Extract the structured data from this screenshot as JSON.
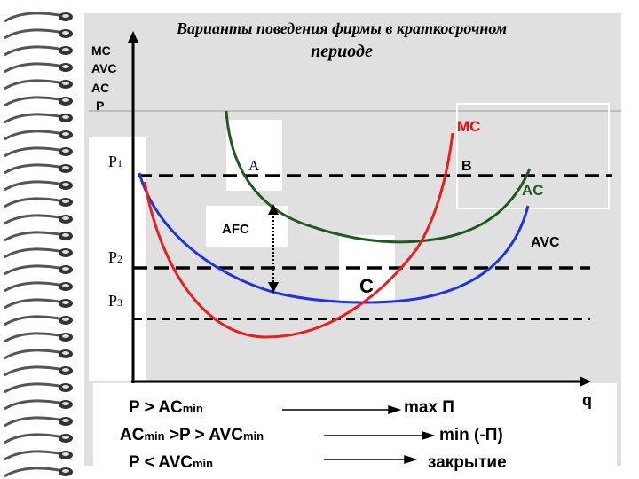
{
  "title": {
    "line1": "Варианты поведения фирмы в краткосрочном",
    "line2": "периоде"
  },
  "axis_labels": {
    "y": [
      "MC",
      "AVC",
      "AC",
      "P"
    ],
    "x": "q"
  },
  "price_levels": [
    {
      "letter": "P",
      "index": "1"
    },
    {
      "letter": "P",
      "index": "2"
    },
    {
      "letter": "P",
      "index": "3"
    }
  ],
  "points": {
    "a": "A",
    "b": "B",
    "c": "C",
    "afc": "AFC"
  },
  "curves": {
    "mc": "MC",
    "ac": "AC",
    "avc": "AVC"
  },
  "rules": [
    {
      "condition": [
        "P  > AC",
        "min"
      ],
      "result": "max П"
    },
    {
      "condition": [
        "AC",
        "min",
        " >P > AVC",
        "min"
      ],
      "result": "min (-П)"
    },
    {
      "condition": [
        "P  < AVC",
        "min"
      ],
      "result": "закрытие"
    }
  ]
}
